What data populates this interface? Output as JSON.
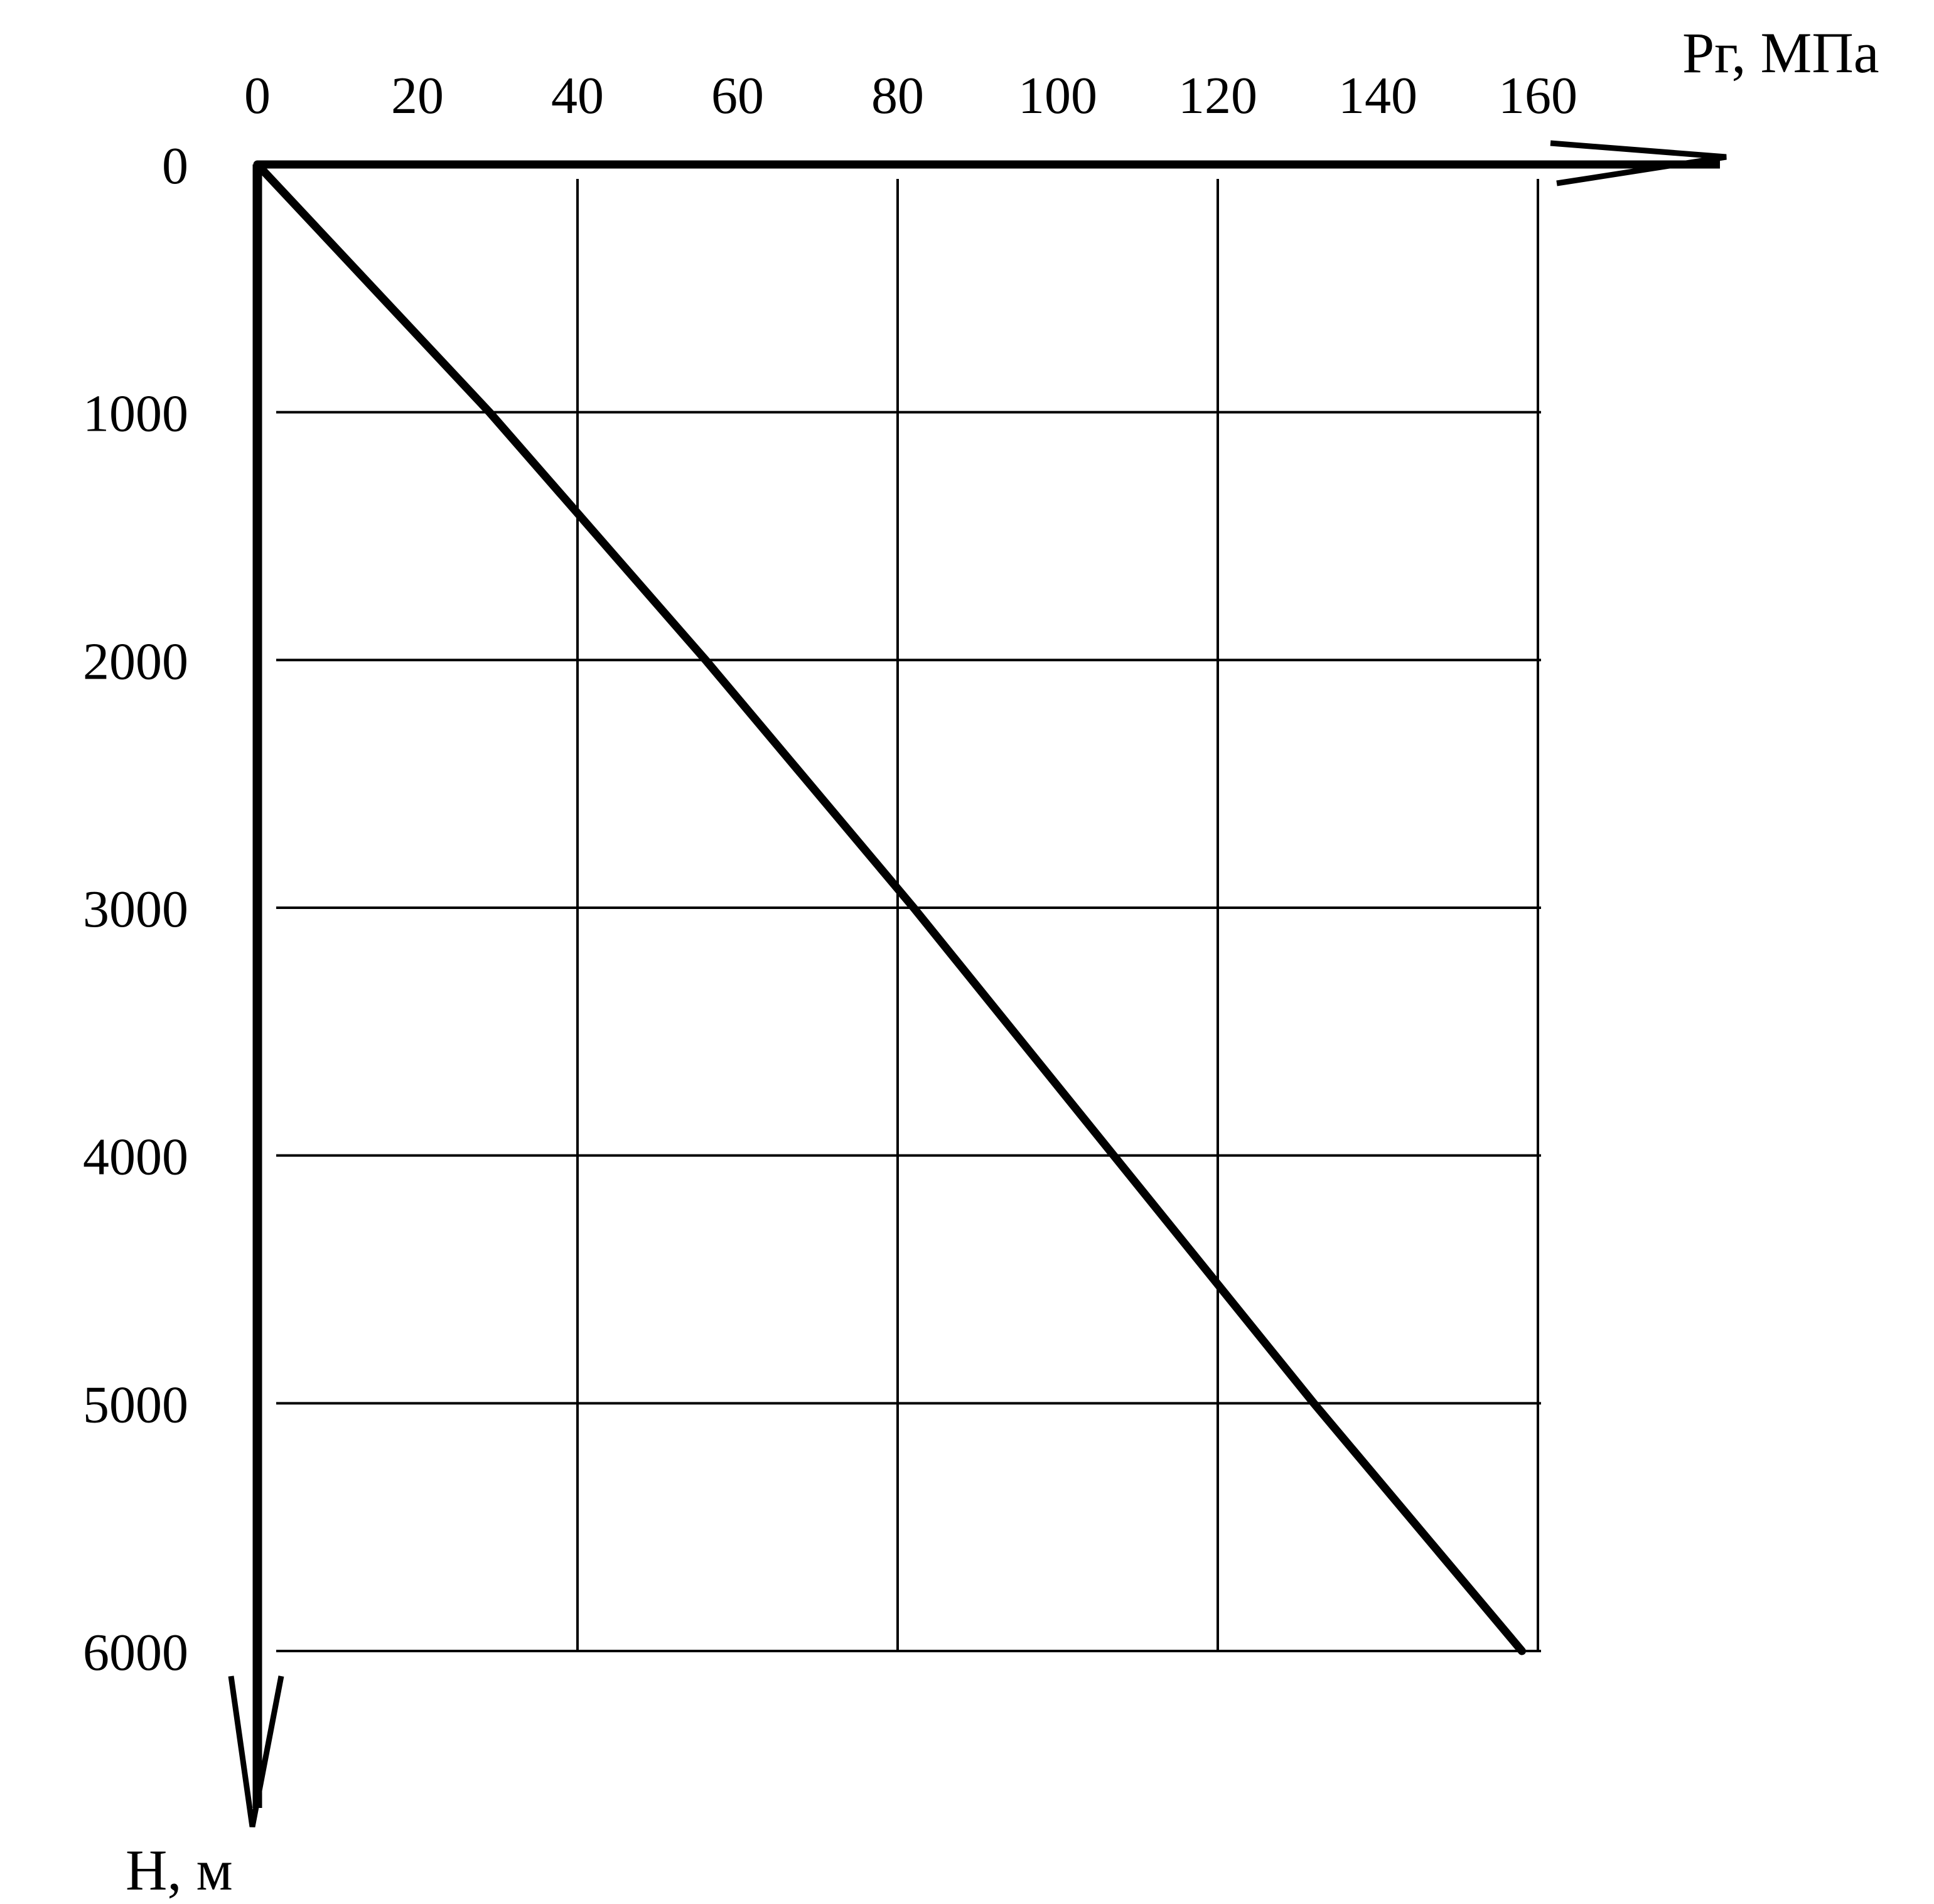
{
  "chart_data": {
    "type": "line",
    "title": "",
    "xlabel": "Рг, МПа",
    "ylabel": "Н, м",
    "x_axis_position": "top",
    "y_axis_inverted": true,
    "xlim": [
      0,
      160
    ],
    "ylim": [
      0,
      6000
    ],
    "x_ticks": [
      {
        "value": 0,
        "label": "0"
      },
      {
        "value": 20,
        "label": "20"
      },
      {
        "value": 40,
        "label": "40"
      },
      {
        "value": 60,
        "label": "60"
      },
      {
        "value": 80,
        "label": "80"
      },
      {
        "value": 100,
        "label": "100"
      },
      {
        "value": 120,
        "label": "120"
      },
      {
        "value": 140,
        "label": "140"
      },
      {
        "value": 160,
        "label": "160"
      }
    ],
    "y_ticks": [
      {
        "value": 0,
        "label": "0"
      },
      {
        "value": 1000,
        "label": "1000"
      },
      {
        "value": 2000,
        "label": "2000"
      },
      {
        "value": 3000,
        "label": "3000"
      },
      {
        "value": 4000,
        "label": "4000"
      },
      {
        "value": 5000,
        "label": "5000"
      },
      {
        "value": 6000,
        "label": "6000"
      }
    ],
    "x_gridlines": [
      40,
      80,
      120,
      160
    ],
    "y_gridlines": [
      1000,
      2000,
      3000,
      4000,
      5000,
      6000
    ],
    "grid": true,
    "legend": "none",
    "series": [
      {
        "x": [
          0,
          29,
          56,
          82,
          107,
          132,
          158
        ],
        "y": [
          0,
          1000,
          2000,
          3000,
          4000,
          5000,
          6000
        ]
      }
    ],
    "colors": {
      "line": "#000000",
      "grid": "#000000",
      "axis": "#000000",
      "background": "#ffffff"
    }
  }
}
